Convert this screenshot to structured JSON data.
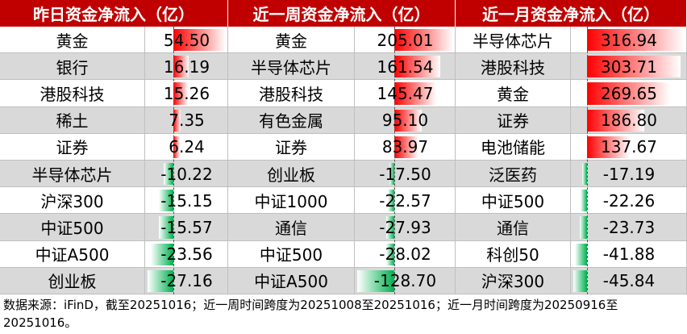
{
  "groups": [
    {
      "title": "昨日资金净流入（亿）",
      "rows": [
        {
          "name": "黄金",
          "value": "54.50"
        },
        {
          "name": "银行",
          "value": "16.19"
        },
        {
          "name": "港股科技",
          "value": "15.26"
        },
        {
          "name": "稀土",
          "value": "7.35"
        },
        {
          "name": "证券",
          "value": "6.24"
        },
        {
          "name": "半导体芯片",
          "value": "-10.22"
        },
        {
          "name": "沪深300",
          "value": "-15.15"
        },
        {
          "name": "中证500",
          "value": "-15.57"
        },
        {
          "name": "中证A500",
          "value": "-23.56"
        },
        {
          "name": "创业板",
          "value": "-27.16"
        }
      ]
    },
    {
      "title": "近一周资金净流入（亿）",
      "rows": [
        {
          "name": "黄金",
          "value": "205.01"
        },
        {
          "name": "半导体芯片",
          "value": "161.54"
        },
        {
          "name": "港股科技",
          "value": "145.47"
        },
        {
          "name": "有色金属",
          "value": "95.10"
        },
        {
          "name": "证券",
          "value": "83.97"
        },
        {
          "name": "创业板",
          "value": "-17.50"
        },
        {
          "name": "中证1000",
          "value": "-22.57"
        },
        {
          "name": "通信",
          "value": "-27.93"
        },
        {
          "name": "中证500",
          "value": "-28.02"
        },
        {
          "name": "中证A500",
          "value": "-128.70"
        }
      ]
    },
    {
      "title": "近一月资金净流入（亿）",
      "rows": [
        {
          "name": "半导体芯片",
          "value": "316.94"
        },
        {
          "name": "港股科技",
          "value": "303.71"
        },
        {
          "name": "黄金",
          "value": "269.65"
        },
        {
          "name": "证券",
          "value": "186.80"
        },
        {
          "name": "电池储能",
          "value": "137.67"
        },
        {
          "name": "泛医药",
          "value": "-17.19"
        },
        {
          "name": "中证500",
          "value": "-22.26"
        },
        {
          "name": "通信",
          "value": "-23.73"
        },
        {
          "name": "科创50",
          "value": "-41.88"
        },
        {
          "name": "沪深300",
          "value": "-45.84"
        }
      ]
    }
  ],
  "note": "数据来源：iFinD，截至20251016；近一周时间跨度为20251008至20251016；近一月时间跨度为20250916至20251016。"
}
